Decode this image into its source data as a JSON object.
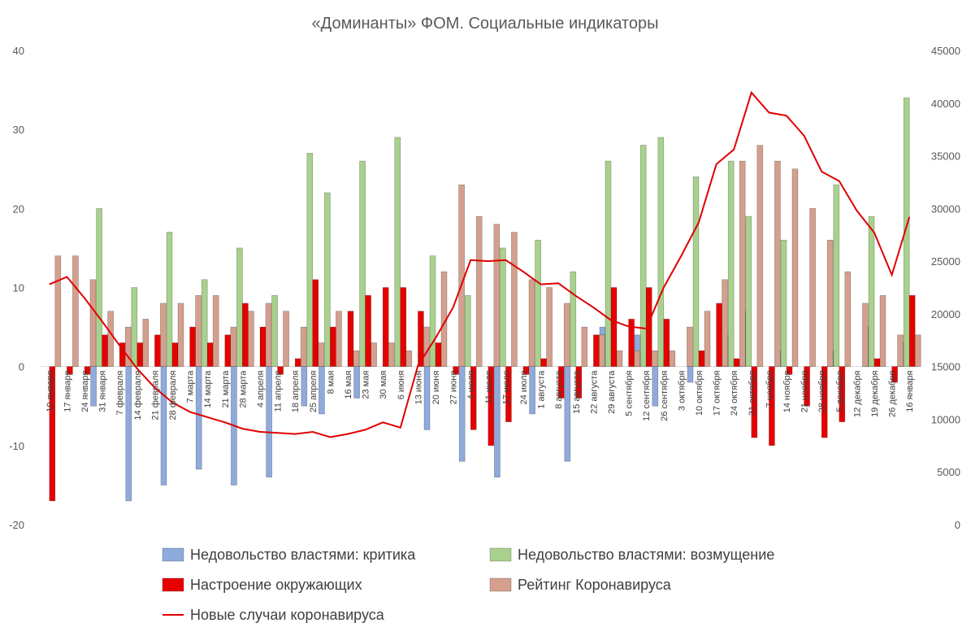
{
  "chart_data": {
    "type": "bar",
    "title": "«Доминанты» ФОМ. Социальные индикаторы",
    "categories": [
      "10 января",
      "17 января",
      "24 января",
      "31 января",
      "7 февраля",
      "14 февраля",
      "21 февраля",
      "28 февраля",
      "7 марта",
      "14 марта",
      "21 марта",
      "28 марта",
      "4 апреля",
      "11 апреля",
      "18 апреля",
      "25 апреля",
      "8 мая",
      "16 мая",
      "23 мая",
      "30 мая",
      "6 июня",
      "13 июня",
      "20 июня",
      "27 июня",
      "4 июля",
      "11 июля",
      "17 июля",
      "24 июля",
      "1 августа",
      "8 августа",
      "15 августа",
      "22 августа",
      "29 августа",
      "5 сентября",
      "12 сентября",
      "26 сентября",
      "3 октября",
      "10 октября",
      "17 октября",
      "24 октября",
      "31 октября",
      "7 ноября",
      "14 ноября",
      "21 ноября",
      "28 ноября",
      "5 декабря",
      "12 декабря",
      "19 декабря",
      "26 декабря",
      "16 января"
    ],
    "y_left": {
      "min": -20,
      "max": 40,
      "ticks": [
        "-20",
        "-10",
        "0",
        "10",
        "20",
        "30",
        "40"
      ]
    },
    "y_right": {
      "min": 0,
      "max": 45000,
      "ticks": [
        "0",
        "5000",
        "10000",
        "15000",
        "20000",
        "25000",
        "30000",
        "35000",
        "40000",
        "45000"
      ]
    },
    "series": [
      {
        "name": "Недовольство властями: критика",
        "axis": "left",
        "color": "#8faadc",
        "values": [
          0,
          0,
          0,
          -5,
          0,
          -17,
          0,
          -15,
          0,
          -13,
          0,
          -15,
          0,
          -14,
          0,
          -5,
          -6,
          0,
          -4,
          0,
          0,
          0,
          -8,
          0,
          -12,
          0,
          -14,
          0,
          -6,
          0,
          -12,
          0,
          5,
          0,
          4,
          -5,
          0,
          -2,
          0,
          4,
          7,
          0,
          2,
          0,
          0,
          2,
          0,
          5,
          0,
          3
        ]
      },
      {
        "name": "Недовольство властями: возмущение",
        "axis": "left",
        "color": "#a9d18e",
        "values": [
          0,
          0,
          0,
          20,
          0,
          10,
          0,
          17,
          0,
          11,
          0,
          15,
          0,
          9,
          0,
          27,
          22,
          0,
          26,
          0,
          29,
          0,
          14,
          0,
          9,
          0,
          15,
          0,
          16,
          0,
          12,
          0,
          26,
          0,
          28,
          29,
          0,
          24,
          0,
          26,
          19,
          0,
          16,
          0,
          0,
          23,
          0,
          19,
          0,
          34
        ]
      },
      {
        "name": "Настроение окружающих",
        "axis": "left",
        "color": "#e60000",
        "values": [
          -17,
          -1,
          -1,
          4,
          3,
          3,
          4,
          3,
          5,
          3,
          4,
          8,
          5,
          -1,
          1,
          11,
          5,
          7,
          9,
          10,
          10,
          7,
          3,
          -1,
          -8,
          -10,
          -7,
          -1,
          1,
          -4,
          -4,
          4,
          10,
          6,
          10,
          6,
          0,
          2,
          8,
          1,
          -9,
          -10,
          -1,
          -5,
          -9,
          -7,
          0,
          1,
          -2,
          9
        ]
      },
      {
        "name": "Рейтинг Коронавируса",
        "axis": "left",
        "color": "#d4a08d",
        "values": [
          14,
          14,
          11,
          7,
          5,
          6,
          8,
          8,
          9,
          9,
          5,
          7,
          8,
          7,
          5,
          3,
          7,
          2,
          3,
          3,
          2,
          5,
          12,
          23,
          19,
          18,
          17,
          11,
          10,
          8,
          5,
          4,
          2,
          2,
          2,
          2,
          5,
          7,
          11,
          26,
          28,
          26,
          25,
          20,
          16,
          12,
          8,
          9,
          4,
          4
        ]
      },
      {
        "name": "Новые случаи коронавируса",
        "axis": "right",
        "type": "line",
        "color": "#e00000",
        "values": [
          22800,
          23500,
          21500,
          19300,
          17000,
          14800,
          13000,
          11600,
          10700,
          10200,
          9700,
          9100,
          8800,
          8700,
          8600,
          8800,
          8300,
          8600,
          9000,
          9700,
          9200,
          15100,
          17700,
          20600,
          25100,
          25000,
          25100,
          24000,
          22800,
          22900,
          21700,
          20600,
          19400,
          18800,
          18600,
          22500,
          25500,
          28700,
          34200,
          35600,
          41000,
          39100,
          38800,
          36900,
          33500,
          32600,
          29800,
          27700,
          23700,
          29200
        ]
      }
    ],
    "legend": {
      "position": "bottom"
    },
    "grid": false
  }
}
